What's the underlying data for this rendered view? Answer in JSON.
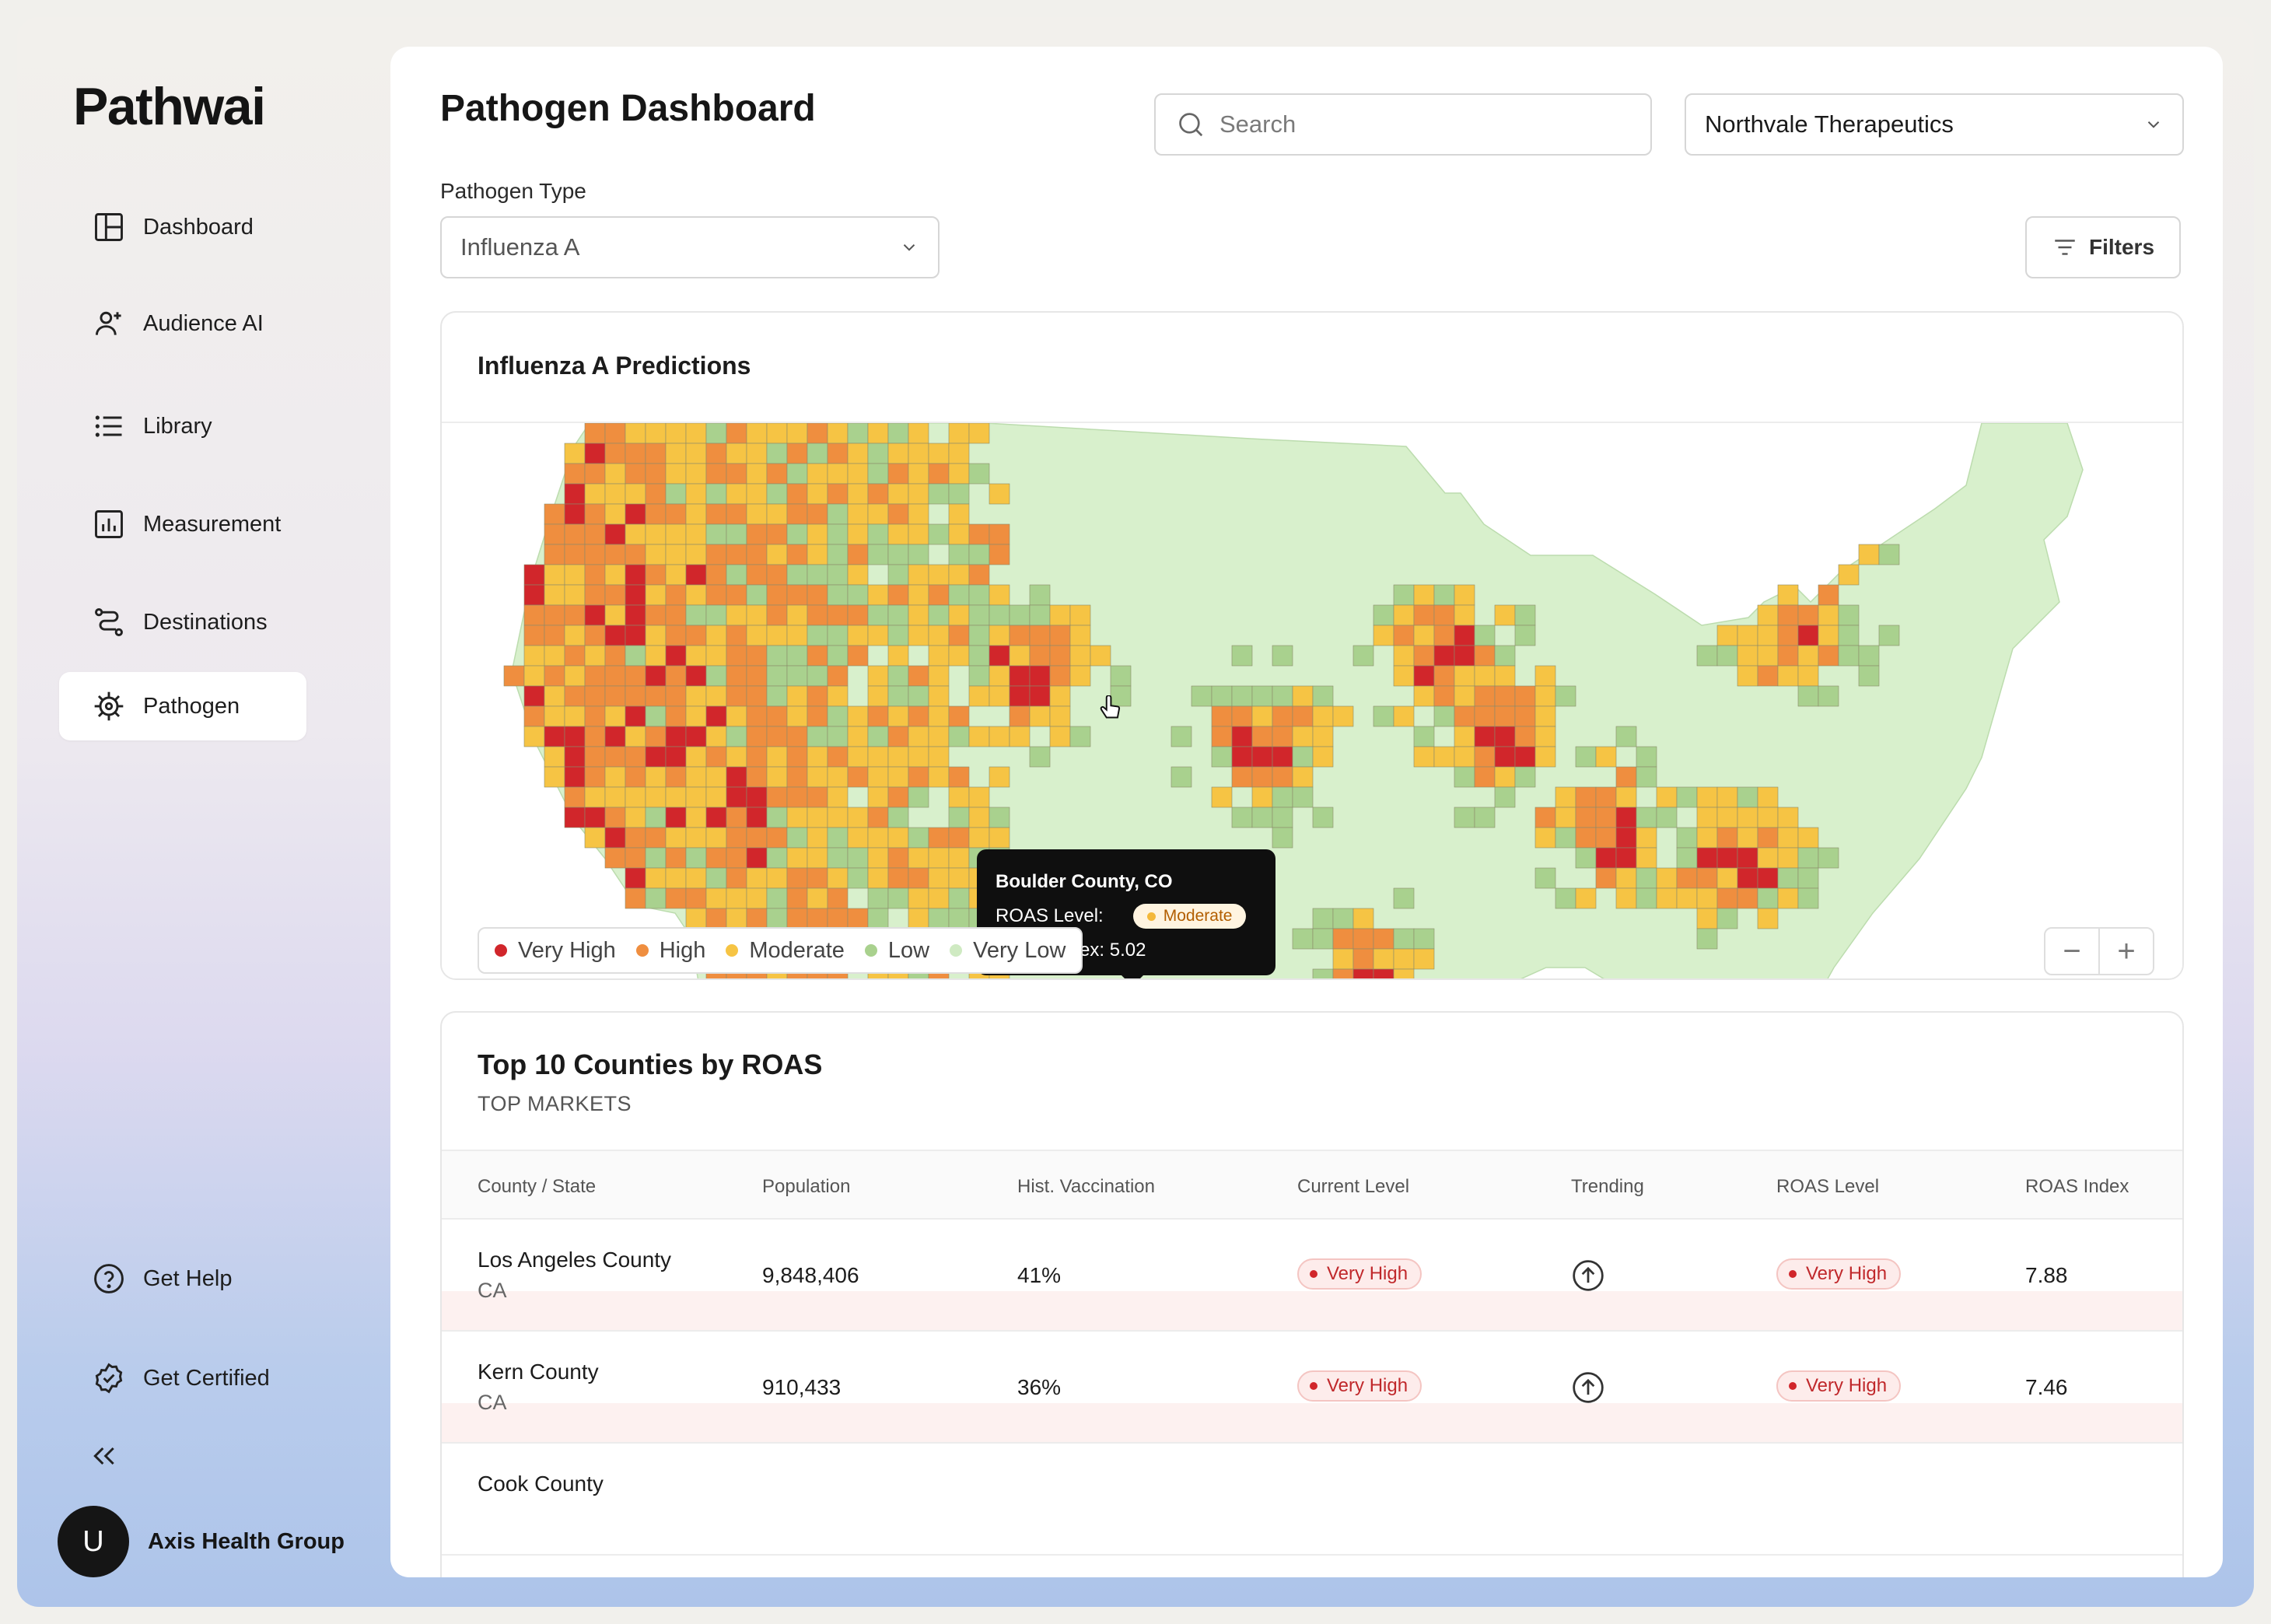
{
  "app": {
    "logo": "Pathwai"
  },
  "sidebar": {
    "items": [
      {
        "label": "Dashboard",
        "icon": "layout-icon"
      },
      {
        "label": "Audience AI",
        "icon": "user-plus-icon"
      },
      {
        "label": "Library",
        "icon": "list-icon"
      },
      {
        "label": "Measurement",
        "icon": "bar-chart-icon"
      },
      {
        "label": "Destinations",
        "icon": "route-icon"
      },
      {
        "label": "Pathogen",
        "icon": "virus-icon",
        "active": true
      }
    ],
    "bottom_items": [
      {
        "label": "Get Help",
        "icon": "help-circle-icon"
      },
      {
        "label": "Get Certified",
        "icon": "badge-check-icon"
      }
    ],
    "user": {
      "initial": "U",
      "name": "Axis Health Group"
    }
  },
  "header": {
    "title": "Pathogen Dashboard",
    "search_placeholder": "Search",
    "organization": "Northvale Therapeutics",
    "pathogen_type_label": "Pathogen Type",
    "pathogen_type_value": "Influenza A",
    "filters_label": "Filters"
  },
  "map": {
    "title": "Influenza A Predictions",
    "legend": [
      {
        "label": "Very High",
        "color": "#d1262b"
      },
      {
        "label": "High",
        "color": "#ef8e3f"
      },
      {
        "label": "Moderate",
        "color": "#f6c444"
      },
      {
        "label": "Low",
        "color": "#a9d18e"
      },
      {
        "label": "Very Low",
        "color": "#d8f0cc"
      }
    ],
    "zoom_out": "−",
    "zoom_in": "+",
    "tooltip": {
      "county": "Boulder County, CO",
      "roas_level_label": "ROAS Level:",
      "roas_level": "Moderate",
      "roas_index": "ROAS Index: 5.02"
    }
  },
  "table": {
    "title": "Top 10 Counties by ROAS",
    "subtitle": "TOP MARKETS",
    "columns": [
      "County / State",
      "Population",
      "Hist. Vaccination",
      "Current Level",
      "Trending",
      "ROAS Level",
      "ROAS Index"
    ],
    "rows": [
      {
        "county": "Los Angeles County",
        "state": "CA",
        "population": "9,848,406",
        "vaccination": "41%",
        "current_level": "Very High",
        "trending": "up",
        "roas_level": "Very High",
        "roas_index": "7.88"
      },
      {
        "county": "Kern County",
        "state": "CA",
        "population": "910,433",
        "vaccination": "36%",
        "current_level": "Very High",
        "trending": "up",
        "roas_level": "Very High",
        "roas_index": "7.46"
      },
      {
        "county": "Cook County",
        "state": "",
        "population": "",
        "vaccination": "",
        "current_level": "",
        "trending": "",
        "roas_level": "",
        "roas_index": ""
      }
    ]
  }
}
